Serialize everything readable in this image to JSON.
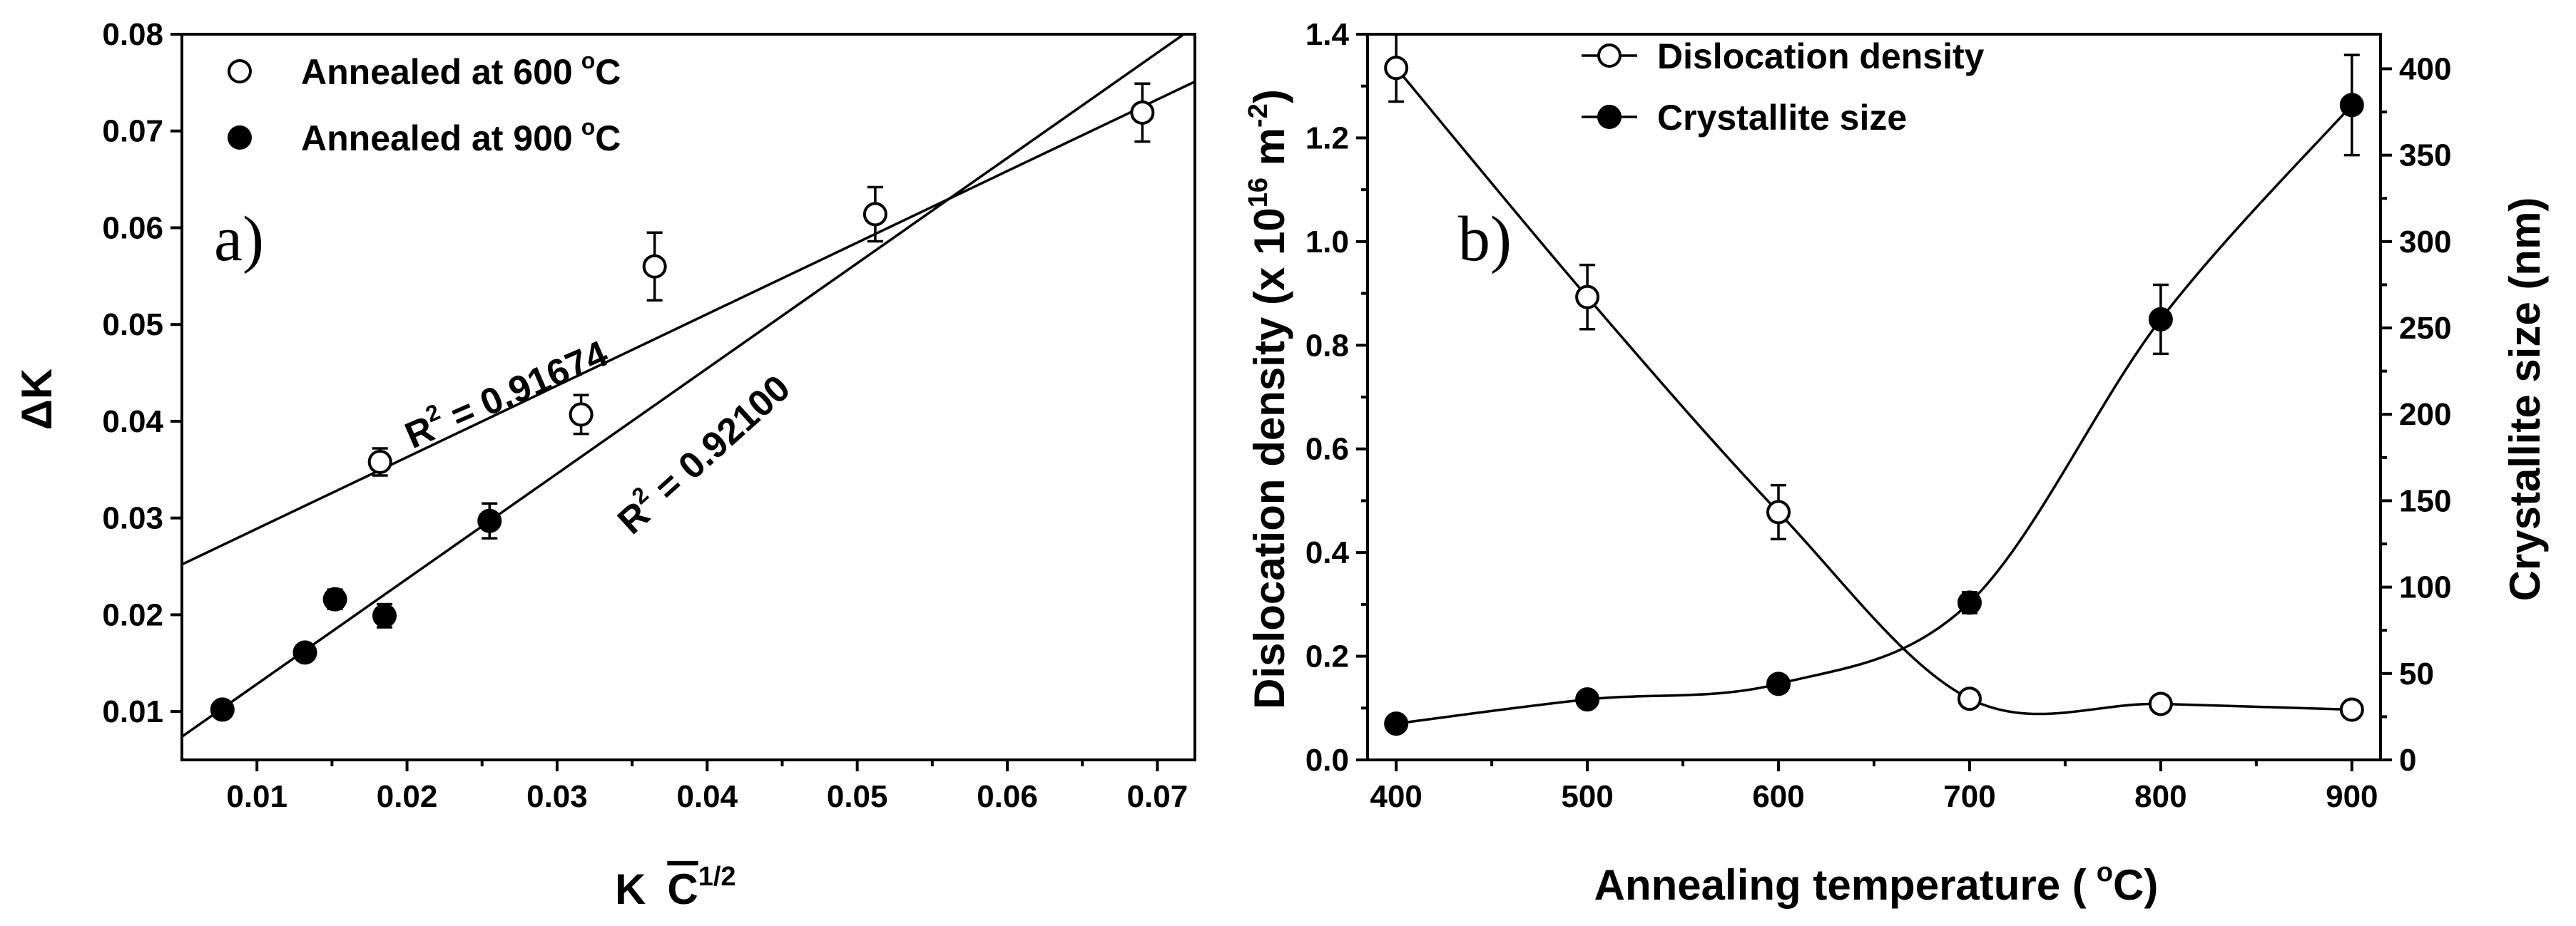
{
  "chart_data": [
    {
      "panel": "a)",
      "type": "scatter",
      "xlabel": "K",
      "xlabel_bar": "C",
      "xlabel_sup": "1/2",
      "ylabel": "ΔK",
      "xlim": [
        0.005,
        0.0725
      ],
      "ylim": [
        0.005,
        0.08
      ],
      "xticks": [
        "0.01",
        "0.02",
        "0.03",
        "0.04",
        "0.05",
        "0.06",
        "0.07"
      ],
      "yticks": [
        "0.01",
        "0.02",
        "0.03",
        "0.04",
        "0.05",
        "0.06",
        "0.07",
        "0.08"
      ],
      "legend": [
        {
          "prefix": "Annealed at 600",
          "sup": "o",
          "suffix": "C",
          "marker": "open"
        },
        {
          "prefix": "Annealed at 900",
          "sup": "o",
          "suffix": "C",
          "marker": "filled"
        }
      ],
      "series": [
        {
          "name": "Annealed at 600 °C",
          "marker": "open",
          "x": [
            0.0182,
            0.0316,
            0.0365,
            0.0512,
            0.069
          ],
          "y": [
            0.0358,
            0.0407,
            0.056,
            0.0614,
            0.0719
          ],
          "err": [
            0.0014,
            0.002,
            0.0035,
            0.0028,
            0.003
          ],
          "fit": {
            "x": [
              0.005,
              0.0725
            ],
            "y": [
              0.0252,
              0.0751
            ]
          },
          "r2": {
            "text": "R",
            "sup": "2",
            "value": " = 0.91674"
          }
        },
        {
          "name": "Annealed at 900 °C",
          "marker": "filled",
          "x": [
            0.0077,
            0.0132,
            0.0152,
            0.0185,
            0.0255
          ],
          "y": [
            0.0102,
            0.0161,
            0.0216,
            0.0199,
            0.0297
          ],
          "err": [
            0.0005,
            0.0008,
            0.001,
            0.0012,
            0.0018
          ],
          "fit": {
            "x": [
              0.005,
              0.0725
            ],
            "y": [
              0.0074,
              0.0808
            ]
          },
          "r2": {
            "text": "R",
            "sup": "2",
            "value": " = 0.92100"
          }
        }
      ]
    },
    {
      "panel": "b)",
      "type": "line",
      "xlabel_prefix": "Annealing temperature (",
      "xlabel_sup": "o",
      "xlabel_suffix": "C)",
      "ylabel_left_prefix": "Dislocation density (x 10",
      "ylabel_left_sup1": "16",
      "ylabel_left_mid": " m",
      "ylabel_left_sup2": "-2",
      "ylabel_left_suffix": ")",
      "ylabel_right": "Crystallite size (nm)",
      "xlim": [
        385,
        915
      ],
      "ylim_left": [
        0,
        1.4
      ],
      "ylim_right": [
        0,
        420
      ],
      "xticks": [
        "400",
        "500",
        "600",
        "700",
        "800",
        "900"
      ],
      "yticks_left": [
        "0.0",
        "0.2",
        "0.4",
        "0.6",
        "0.8",
        "1.0",
        "1.2",
        "1.4"
      ],
      "yticks_right": [
        "0",
        "50",
        "100",
        "150",
        "200",
        "250",
        "300",
        "350",
        "400"
      ],
      "legend": [
        {
          "label": "Dislocation density",
          "marker": "open"
        },
        {
          "label": "Crystallite size",
          "marker": "filled"
        }
      ],
      "series": [
        {
          "name": "Dislocation density",
          "axis": "left",
          "marker": "open",
          "x": [
            400,
            500,
            600,
            700,
            800,
            900
          ],
          "y": [
            1.335,
            0.893,
            0.478,
            0.118,
            0.108,
            0.097
          ],
          "err": [
            0.065,
            0.062,
            0.052,
            0.015,
            0.015,
            0.015
          ]
        },
        {
          "name": "Crystallite size",
          "axis": "right",
          "marker": "filled",
          "x": [
            400,
            500,
            600,
            700,
            800,
            900
          ],
          "y": [
            21,
            35,
            44,
            91,
            255,
            379
          ],
          "err": [
            4,
            4,
            4,
            6,
            20,
            29
          ]
        }
      ]
    }
  ]
}
